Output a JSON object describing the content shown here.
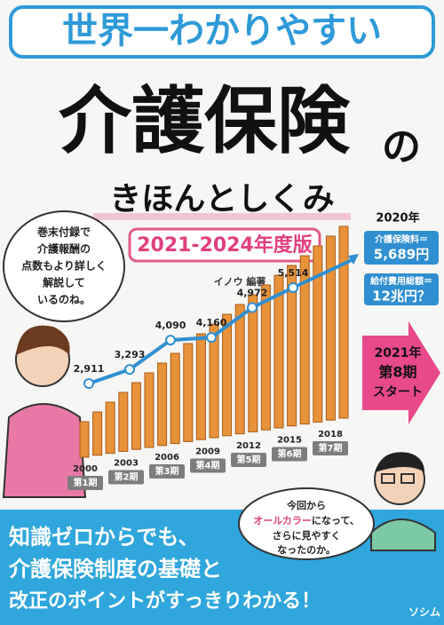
{
  "series_label": "世界一わかりやすい",
  "title": "介護保険",
  "title_suffix": "の",
  "subtitle": "きほんとしくみ",
  "edition": "2021-2024年度版",
  "author": "イノウ 編著",
  "speech_top": [
    "巻末付録で",
    "介護報酬の",
    "点数もより詳しく",
    "解説して",
    "いるのね。"
  ],
  "chart_data": {
    "type": "line",
    "categories": [
      "2000",
      "2003",
      "2006",
      "2009",
      "2012",
      "2015",
      "2018"
    ],
    "values": [
      2911,
      3293,
      4090,
      4160,
      4972,
      5514,
      null
    ],
    "value_labels": [
      "2,911",
      "3,293",
      "4,090",
      "4,160",
      "4,972",
      "5,514",
      null
    ],
    "periods": [
      "第1期",
      "第2期",
      "第3期",
      "第4期",
      "第5期",
      "第6期",
      "第7期"
    ],
    "color": "#2f8fd0"
  },
  "callouts": {
    "year": "2020年",
    "premium_label": "介護保険料＝",
    "premium_value": "5,689円",
    "cost_label": "給付費用総額＝",
    "cost_value": "12兆円？"
  },
  "arrow": [
    "2021年",
    "第8期",
    "スタート"
  ],
  "speech_bottom": {
    "line1": "今回から",
    "highlight": "オールカラー",
    "rest": "になって、",
    "line3": "さらに見やすく",
    "line4": "なったのか。"
  },
  "tagline": [
    "知識ゼロからでも、",
    "介護保険制度の基礎と",
    "改正のポイントがすっきりわかる！"
  ],
  "publisher": "ソシム"
}
